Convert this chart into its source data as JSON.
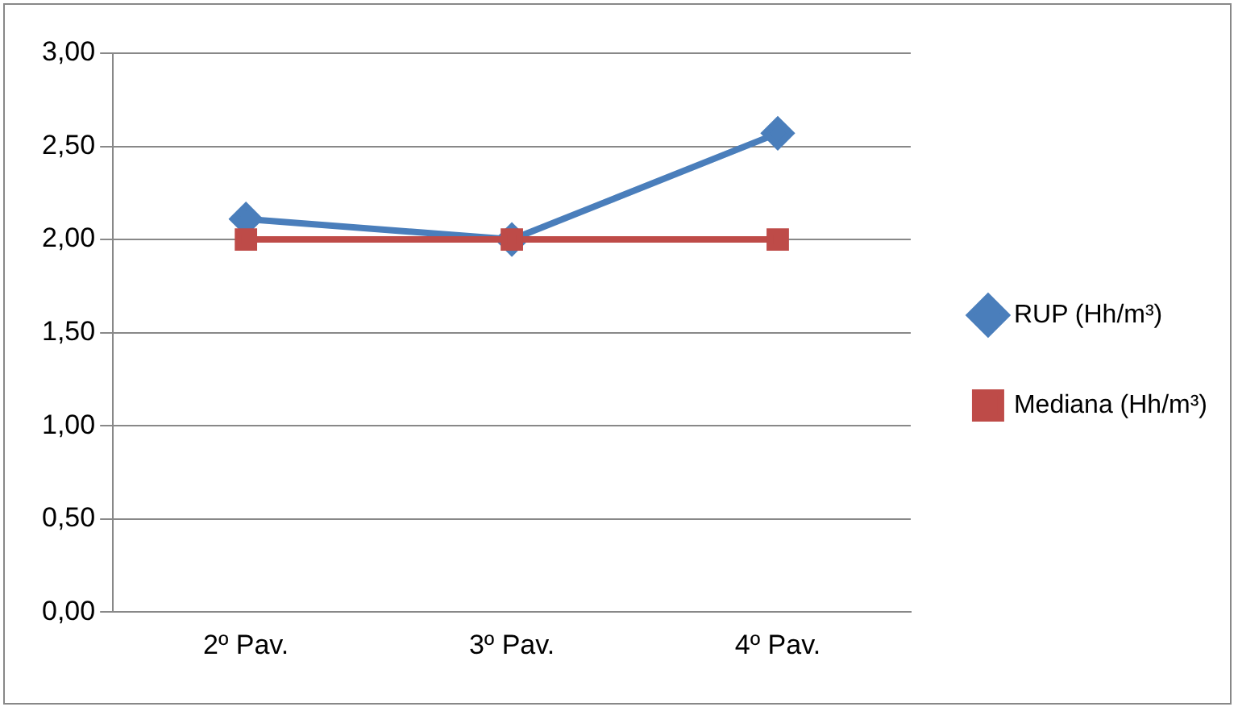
{
  "chart_data": {
    "type": "line",
    "categories": [
      "2º Pav.",
      "3º Pav.",
      "4º Pav."
    ],
    "series": [
      {
        "name": "RUP (Hh/m³)",
        "color": "#4a7ebb",
        "values": [
          2.11,
          2.0,
          2.57
        ],
        "marker": "diamond"
      },
      {
        "name": "Mediana (Hh/m³)",
        "color": "#be4b48",
        "values": [
          2.0,
          2.0,
          2.0
        ],
        "marker": "square"
      }
    ],
    "ylim": [
      0,
      3
    ],
    "yticks": [
      {
        "value": 0,
        "label": "0,00"
      },
      {
        "value": 0.5,
        "label": "0,50"
      },
      {
        "value": 1,
        "label": "1,00"
      },
      {
        "value": 1.5,
        "label": "1,50"
      },
      {
        "value": 2,
        "label": "2,00"
      },
      {
        "value": 2.5,
        "label": "2,50"
      },
      {
        "value": 3,
        "label": "3,00"
      }
    ],
    "grid": "y",
    "legend": "right",
    "line_style": "solid"
  }
}
